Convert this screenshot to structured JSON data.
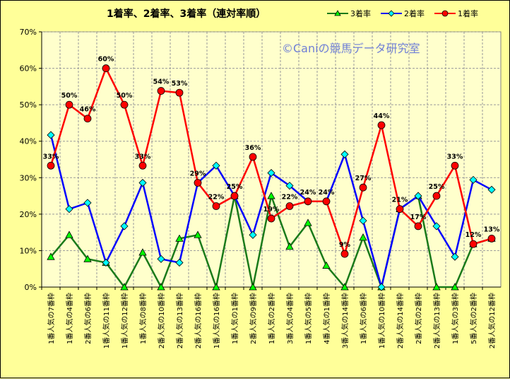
{
  "chart_data": {
    "type": "line",
    "title": "1着率、2着率、3着率（連対率順）",
    "watermark": "©Caniの競馬データ研究室",
    "ylim": [
      0,
      70
    ],
    "yticks": [
      "0%",
      "10%",
      "20%",
      "30%",
      "40%",
      "50%",
      "60%",
      "70%"
    ],
    "categories": [
      "1番人気の7番枠",
      "1番人気の4番枠",
      "2番人気の6番枠",
      "1番人気の11番枠",
      "1番人気の12番枠",
      "1番人気の8番枠",
      "2番人気の10番枠",
      "2番人気の13番枠",
      "2番人気の16番枠",
      "1番人気の16番枠",
      "1番人気の1番枠",
      "2番人気の9番枠",
      "1番人気の2番枠",
      "3番人気の4番枠",
      "1番人気の5番枠",
      "4番人気の1番枠",
      "3番人気の14番枠",
      "1番人気の6番枠",
      "1番人気の10番枠",
      "2番人気の14番枠",
      "2番人気の2番枠",
      "2番人気の13番枠",
      "1番人気の3番枠",
      "5番人気の2番枠",
      "2番人気の12番枠"
    ],
    "series": [
      {
        "name": "3着率",
        "color": "#1a7a1a",
        "marker": "triangle",
        "values": [
          8.3,
          14.3,
          7.7,
          6.7,
          0,
          9.5,
          0,
          13.3,
          14.3,
          0,
          25,
          0,
          25,
          11.1,
          17.6,
          5.9,
          0,
          13.6,
          0,
          21.4,
          25,
          0,
          0,
          11.8,
          13.3
        ]
      },
      {
        "name": "2着率",
        "color": "#0000ff",
        "marker": "diamond",
        "values": [
          41.7,
          21.4,
          23.1,
          6.7,
          16.7,
          28.6,
          7.7,
          6.7,
          28.6,
          33.3,
          25,
          14.3,
          31.3,
          27.8,
          23.5,
          23.5,
          36.4,
          18.2,
          0,
          21.4,
          25,
          16.7,
          8.3,
          29.4,
          26.7
        ]
      },
      {
        "name": "1着率",
        "color": "#ff0000",
        "marker": "circle",
        "values": [
          33.3,
          50,
          46.2,
          60,
          50,
          33.3,
          53.8,
          53.3,
          28.6,
          22.2,
          25,
          35.7,
          18.8,
          22.2,
          23.5,
          23.5,
          9.1,
          27.3,
          44.4,
          21.4,
          16.7,
          25,
          33.3,
          11.8,
          13.3
        ]
      }
    ],
    "data_labels": [
      "33%",
      "50%",
      "46%",
      "60%",
      "50%",
      "33%",
      "54%",
      "53%",
      "29%",
      "22%",
      "25%",
      "36%",
      "19%",
      "22%",
      "24%",
      "24%",
      "9%",
      "27%",
      "44%",
      "21%",
      "17%",
      "25%",
      "33%",
      "12%",
      "13%"
    ]
  }
}
